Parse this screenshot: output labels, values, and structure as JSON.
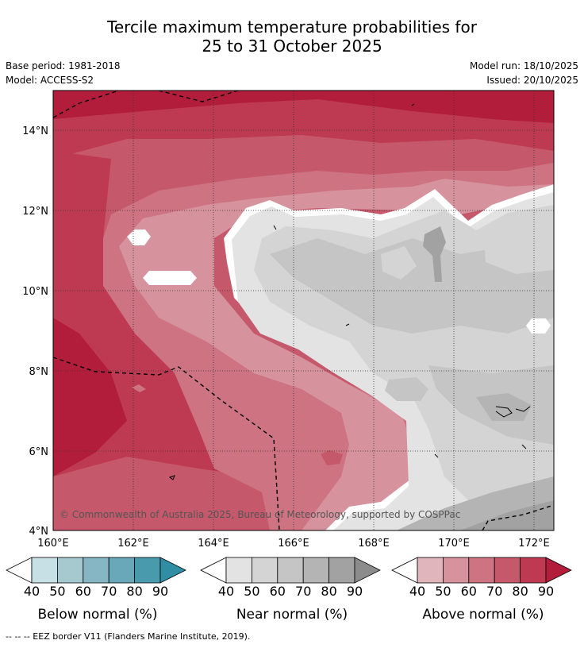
{
  "title_line1": "Tercile maximum temperature probabilities for",
  "title_line2": "25 to 31 October 2025",
  "base_period": "Base period: 1981-2018",
  "model": "Model: ACCESS-S2",
  "model_run": "Model run: 18/10/2025",
  "issued": "Issued: 20/10/2025",
  "copyright": "© Commonwealth of Australia 2025, Bureau of Meteorology, supported by COSPPac",
  "axes": {
    "lat_labels": [
      "14°N",
      "12°N",
      "10°N",
      "8°N",
      "6°N",
      "4°N"
    ],
    "lon_labels": [
      "160°E",
      "162°E",
      "164°E",
      "166°E",
      "168°E",
      "170°E",
      "172°E"
    ]
  },
  "legends": [
    {
      "label": "Below normal (%)",
      "ticks": [
        "40",
        "50",
        "60",
        "70",
        "80",
        "90"
      ],
      "colors": [
        "#c7e0e6",
        "#a6c9d0",
        "#86b6c3",
        "#69a8b8",
        "#4a9aae",
        "#2f8ea4"
      ]
    },
    {
      "label": "Near normal (%)",
      "ticks": [
        "40",
        "50",
        "60",
        "70",
        "80",
        "90"
      ],
      "colors": [
        "#e3e3e3",
        "#d4d4d4",
        "#c5c5c5",
        "#b4b4b4",
        "#a2a2a2",
        "#8c8c8c"
      ]
    },
    {
      "label": "Above normal (%)",
      "ticks": [
        "40",
        "50",
        "60",
        "70",
        "80",
        "90"
      ],
      "colors": [
        "#e0b5bb",
        "#d6929d",
        "#cd7382",
        "#c5596b",
        "#be3a52",
        "#b31d3c"
      ]
    }
  ],
  "footnote": "--  --  -- EEZ border V11 (Flanders Marine Institute, 2019)."
}
